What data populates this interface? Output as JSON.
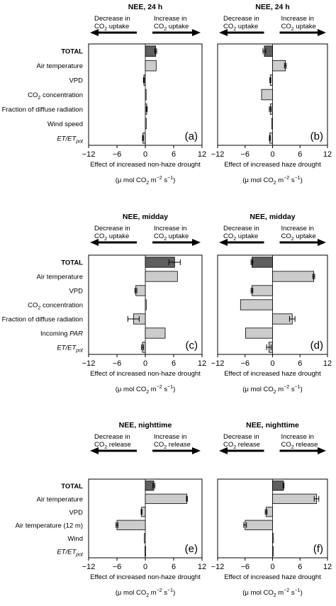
{
  "figure": {
    "panels": [
      {
        "letter": "(a)",
        "title": "NEE, 24 h",
        "left_arrow": [
          "Decrease in",
          "CO2 uptake"
        ],
        "right_arrow": [
          "Increase in",
          "CO2 uptake"
        ],
        "xlabel": "Effect of increased non-haze drought",
        "labels": [
          "TOTAL",
          "Air temperature",
          "VPD",
          "CO2 concentration",
          "Fraction of diffuse radiation",
          "Wind speed",
          "ET/ETpot"
        ]
      },
      {
        "letter": "(b)",
        "title": "NEE, 24 h",
        "left_arrow": [
          "Decrease in",
          "CO2 uptake"
        ],
        "right_arrow": [
          "Increase in",
          "CO2 uptake"
        ],
        "xlabel": "Effect of increased haze drought",
        "labels": []
      },
      {
        "letter": "(c)",
        "title": "NEE, midday",
        "left_arrow": [
          "Decrease in",
          "CO2 uptake"
        ],
        "right_arrow": [
          "Increase in",
          "CO2 uptake"
        ],
        "xlabel": "Effect of increased non-haze drought",
        "labels": [
          "TOTAL",
          "Air temperature",
          "VPD",
          "CO2 concentration",
          "Fraction of diffuse radiation",
          "Incoming PAR",
          "ET/ETpot"
        ]
      },
      {
        "letter": "(d)",
        "title": "NEE, midday",
        "left_arrow": [
          "Decrease in",
          "CO2 uptake"
        ],
        "right_arrow": [
          "Increase in",
          "CO2 uptake"
        ],
        "xlabel": "Effect of increased haze drought",
        "labels": []
      },
      {
        "letter": "(e)",
        "title": "NEE, nighttime",
        "left_arrow": [
          "Decrease in",
          "CO2 release"
        ],
        "right_arrow": [
          "Increase in",
          "CO2 release"
        ],
        "xlabel": "Effect of increased non-haze drought",
        "labels": [
          "TOTAL",
          "Air temperature",
          "VPD",
          "Air temperature (12 m)",
          "Wind",
          "ET/ETpot"
        ]
      },
      {
        "letter": "(f)",
        "title": "NEE, nighttime",
        "left_arrow": [
          "Decrease in",
          "CO2 release"
        ],
        "right_arrow": [
          "Increase in",
          "CO2 release"
        ],
        "xlabel": "Effect of increased haze drought",
        "labels": []
      }
    ],
    "unit": "(μ mol CO2 m−2 s−1)",
    "colors": {
      "total": "#5f5f5f",
      "driver": "#cccccc"
    }
  },
  "chart_data": [
    {
      "type": "bar",
      "orientation": "horizontal",
      "title": "NEE, 24 h",
      "panel": "(a)",
      "xlabel": "Effect of increased non-haze drought",
      "xunit": "(μ mol CO2 m−2 s−1)",
      "xlim": [
        -12,
        12
      ],
      "xticks": [
        -12,
        -6,
        0,
        6,
        12
      ],
      "categories": [
        "TOTAL",
        "Air temperature",
        "VPD",
        "CO2 concentration",
        "Fraction of diffuse radiation",
        "Wind speed",
        "ET/ETpot"
      ],
      "values": [
        2.2,
        2.3,
        -0.3,
        0.1,
        0.3,
        0.2,
        -0.5
      ],
      "errors": [
        0.2,
        0.0,
        0.1,
        0.0,
        0.1,
        0.0,
        0.1
      ]
    },
    {
      "type": "bar",
      "orientation": "horizontal",
      "title": "NEE, 24 h",
      "panel": "(b)",
      "xlabel": "Effect of increased haze drought",
      "xunit": "(μ mol CO2 m−2 s−1)",
      "xlim": [
        -12,
        12
      ],
      "xticks": [
        -12,
        -6,
        0,
        6,
        12
      ],
      "categories": [
        "TOTAL",
        "Air temperature",
        "VPD",
        "CO2 concentration",
        "Fraction of diffuse radiation",
        "Wind speed",
        "ET/ETpot"
      ],
      "values": [
        -1.8,
        2.8,
        -0.5,
        -2.4,
        -0.5,
        -0.2,
        -0.6
      ],
      "errors": [
        0.3,
        0.2,
        0.1,
        0.0,
        0.2,
        0.0,
        0.1
      ]
    },
    {
      "type": "bar",
      "orientation": "horizontal",
      "title": "NEE, midday",
      "panel": "(c)",
      "xlabel": "Effect of increased non-haze drought",
      "xunit": "(μ mol CO2 m−2 s−1)",
      "xlim": [
        -12,
        12
      ],
      "xticks": [
        -12,
        -6,
        0,
        6,
        12
      ],
      "categories": [
        "TOTAL",
        "Air temperature",
        "VPD",
        "CO2 concentration",
        "Fraction of diffuse radiation",
        "Incoming PAR",
        "ET/ETpot"
      ],
      "values": [
        6.2,
        6.8,
        -2.0,
        0.2,
        -2.5,
        4.2,
        -0.6
      ],
      "errors": [
        1.2,
        0.0,
        0.2,
        0.0,
        1.2,
        0.0,
        0.2
      ]
    },
    {
      "type": "bar",
      "orientation": "horizontal",
      "title": "NEE, midday",
      "panel": "(d)",
      "xlabel": "Effect of increased haze drought",
      "xunit": "(μ mol CO2 m−2 s−1)",
      "xlim": [
        -12,
        12
      ],
      "xticks": [
        -12,
        -6,
        0,
        6,
        12
      ],
      "categories": [
        "TOTAL",
        "Air temperature",
        "VPD",
        "CO2 concentration",
        "Fraction of diffuse radiation",
        "Incoming PAR",
        "ET/ETpot"
      ],
      "values": [
        -4.5,
        9.0,
        -4.5,
        -7.0,
        4.3,
        -5.9,
        -0.8
      ],
      "errors": [
        0.2,
        0.2,
        0.2,
        0.0,
        0.6,
        0.0,
        0.5
      ]
    },
    {
      "type": "bar",
      "orientation": "horizontal",
      "title": "NEE, nighttime",
      "panel": "(e)",
      "xlabel": "Effect of increased non-haze drought",
      "xunit": "(μ mol CO2 m−2 s−1)",
      "xlim": [
        -12,
        12
      ],
      "xticks": [
        -12,
        -6,
        0,
        6,
        12
      ],
      "categories": [
        "TOTAL",
        "Air temperature",
        "VPD",
        "Air temperature (12 m)",
        "Wind",
        "ET/ETpot"
      ],
      "values": [
        1.8,
        8.8,
        -0.8,
        -6.0,
        -0.2,
        -0.1
      ],
      "errors": [
        0.2,
        0.1,
        0.1,
        0.2,
        0.0,
        0.0
      ]
    },
    {
      "type": "bar",
      "orientation": "horizontal",
      "title": "NEE, nighttime",
      "panel": "(f)",
      "xlabel": "Effect of increased haze drought",
      "xunit": "(μ mol CO2 m−2 s−1)",
      "xlim": [
        -12,
        12
      ],
      "xticks": [
        -12,
        -6,
        0,
        6,
        12
      ],
      "categories": [
        "TOTAL",
        "Air temperature",
        "VPD",
        "Air temperature (12 m)",
        "Wind",
        "ET/ETpot"
      ],
      "values": [
        2.4,
        9.6,
        -1.4,
        -6.0,
        0.0,
        0.0
      ],
      "errors": [
        0.1,
        0.5,
        0.2,
        0.3,
        0.0,
        0.0
      ]
    }
  ]
}
